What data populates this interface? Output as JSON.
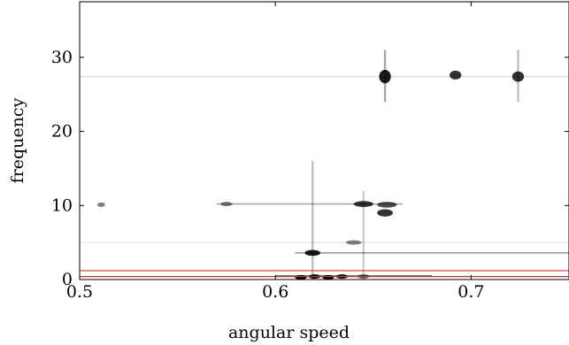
{
  "chart_data": {
    "type": "heatmap",
    "title": "",
    "xlabel": "angular speed",
    "ylabel": "frequency",
    "xlim": [
      0.5,
      0.75
    ],
    "ylim": [
      0,
      37.5
    ],
    "xticks": [
      0.5,
      0.6,
      0.7
    ],
    "xtick_labels": [
      "0.5",
      "0.6",
      "0.7"
    ],
    "yticks": [
      0,
      10,
      20,
      30
    ],
    "ytick_labels": [
      "0",
      "10",
      "20",
      "30"
    ],
    "grid": false,
    "colormap": "white-to-black (intensity)",
    "hot_spots": [
      {
        "x": 0.511,
        "y": 10.1,
        "intensity": 0.5,
        "dx": 0.002,
        "dy": 0.3
      },
      {
        "x": 0.575,
        "y": 10.2,
        "intensity": 0.5,
        "dx": 0.003,
        "dy": 0.3
      },
      {
        "x": 0.619,
        "y": 3.6,
        "intensity": 0.9,
        "dx": 0.004,
        "dy": 0.4
      },
      {
        "x": 0.64,
        "y": 5.0,
        "intensity": 0.5,
        "dx": 0.004,
        "dy": 0.3
      },
      {
        "x": 0.645,
        "y": 10.2,
        "intensity": 0.8,
        "dx": 0.005,
        "dy": 0.4
      },
      {
        "x": 0.657,
        "y": 10.1,
        "intensity": 0.7,
        "dx": 0.005,
        "dy": 0.4
      },
      {
        "x": 0.656,
        "y": 9.0,
        "intensity": 0.8,
        "dx": 0.004,
        "dy": 0.5
      },
      {
        "x": 0.656,
        "y": 27.4,
        "intensity": 0.9,
        "dx": 0.003,
        "dy": 0.9
      },
      {
        "x": 0.692,
        "y": 27.6,
        "intensity": 0.8,
        "dx": 0.003,
        "dy": 0.6
      },
      {
        "x": 0.724,
        "y": 27.4,
        "intensity": 0.8,
        "dx": 0.003,
        "dy": 0.7
      },
      {
        "x": 0.613,
        "y": 0.3,
        "intensity": 1.0,
        "dx": 0.003,
        "dy": 0.3
      },
      {
        "x": 0.62,
        "y": 0.4,
        "intensity": 1.0,
        "dx": 0.003,
        "dy": 0.3
      },
      {
        "x": 0.627,
        "y": 0.3,
        "intensity": 1.0,
        "dx": 0.003,
        "dy": 0.3
      },
      {
        "x": 0.634,
        "y": 0.4,
        "intensity": 0.9,
        "dx": 0.003,
        "dy": 0.3
      },
      {
        "x": 0.645,
        "y": 0.4,
        "intensity": 0.6,
        "dx": 0.003,
        "dy": 0.3
      }
    ],
    "horizontal_streaks": [
      {
        "x0": 0.57,
        "x1": 0.665,
        "y": 10.2,
        "intensity": 0.35
      },
      {
        "x0": 0.61,
        "x1": 0.75,
        "y": 3.6,
        "intensity": 0.4
      },
      {
        "x0": 0.5,
        "x1": 0.75,
        "y": 27.4,
        "intensity": 0.12
      },
      {
        "x0": 0.6,
        "x1": 0.68,
        "y": 0.5,
        "intensity": 0.55
      },
      {
        "x0": 0.5,
        "x1": 0.75,
        "y": 5.0,
        "intensity": 0.08
      }
    ],
    "vertical_streaks": [
      {
        "x": 0.619,
        "y0": 0,
        "y1": 16,
        "intensity": 0.25
      },
      {
        "x": 0.656,
        "y0": 24,
        "y1": 31,
        "intensity": 0.35
      },
      {
        "x": 0.724,
        "y0": 24,
        "y1": 31,
        "intensity": 0.25
      },
      {
        "x": 0.645,
        "y0": 0,
        "y1": 12,
        "intensity": 0.2
      }
    ],
    "reference_lines": [
      {
        "y": 0.4,
        "color": "#c0392b"
      },
      {
        "y": 1.2,
        "color": "#c0392b"
      }
    ]
  }
}
